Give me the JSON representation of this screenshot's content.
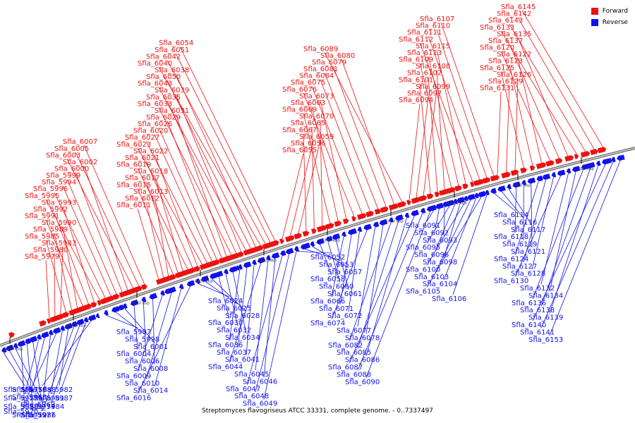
{
  "caption": "Streptomyces flavogriseus ATCC 33331, complete genome. - 0..7337497",
  "legend": {
    "forward_label": "Forward",
    "forward_color": "#ee1111",
    "reverse_label": "Reverse",
    "reverse_color": "#1111ee"
  },
  "ticks": [
    "6840 kbp",
    "6860 kbp",
    "6880 kbp",
    "6900 kbp",
    "6920 kbp",
    "6940 kbp",
    "6960 kbp",
    "6980 kbp",
    "7000 kbp",
    "7020 kbp"
  ],
  "forward_genes": [
    "Sfla_5979",
    "Sfla_5980",
    "Sfla_5983",
    "Sfla_5985",
    "Sfla_5989",
    "Sfla_5990",
    "Sfla_5991",
    "Sfla_5992",
    "Sfla_5993",
    "Sfla_5995",
    "Sfla_5996",
    "Sfla_5994",
    "Sfla_5999",
    "Sfla_6000",
    "Sfla_6002",
    "Sfla_6003",
    "Sfla_6005",
    "Sfla_6007",
    "Sfla_6011",
    "Sfla_6012",
    "Sfla_6013",
    "Sfla_6015",
    "Sfla_6017",
    "Sfla_6018",
    "Sfla_6019",
    "Sfla_6021",
    "Sfla_6022",
    "Sfla_6023",
    "Sfla_6027",
    "Sfla_6020",
    "Sfla_6026",
    "Sfla_6029",
    "Sfla_6031",
    "Sfla_6033",
    "Sfla_6035",
    "Sfla_6039",
    "Sfla_6043",
    "Sfla_6050",
    "Sfla_6038",
    "Sfla_6040",
    "Sfla_6042",
    "Sfla_6051",
    "Sfla_6054",
    "Sfla_6055",
    "Sfla_6056",
    "Sfla_6059",
    "Sfla_6067",
    "Sfla_6065",
    "Sfla_6070",
    "Sfla_6069",
    "Sfla_6063",
    "Sfla_6073",
    "Sfla_6076",
    "Sfla_6075",
    "Sfla_6084",
    "Sfla_6081",
    "Sfla_6079",
    "Sfla_6080",
    "Sfla_6089",
    "Sfla_6094",
    "Sfla_6097",
    "Sfla_6099",
    "Sfla_6101",
    "Sfla_6102",
    "Sfla_6108",
    "Sfla_6109",
    "Sfla_6113",
    "Sfla_6115",
    "Sfla_6112",
    "Sfla_6111",
    "Sfla_6110",
    "Sfla_6107",
    "Sfla_6131",
    "Sfla_6129",
    "Sfla_6126",
    "Sfla_6125",
    "Sfla_6123",
    "Sfla_6122",
    "Sfla_6120",
    "Sfla_6137",
    "Sfla_6135",
    "Sfla_6133",
    "Sfla_6143",
    "Sfla_6142",
    "Sfla_6145"
  ],
  "reverse_genes": [
    "Sfla_5967",
    "Sfla_5968",
    "Sfla_5969",
    "Sfla_5970",
    "Sfla_5972",
    "Sfla_5974",
    "Sfla_5975",
    "Sfla_5976",
    "Sfla_5977",
    "Sfla_5978",
    "Sfla_5981",
    "Sfla_5982",
    "Sfla_5986",
    "Sfla_5984",
    "Sfla_5987",
    "Sfla_5988",
    "Sfla_5997",
    "Sfla_5998",
    "Sfla_6001",
    "Sfla_6004",
    "Sfla_6006",
    "Sfla_6008",
    "Sfla_6009",
    "Sfla_6010",
    "Sfla_6014",
    "Sfla_6016",
    "Sfla_6024",
    "Sfla_6025",
    "Sfla_6028",
    "Sfla_6030",
    "Sfla_6032",
    "Sfla_6034",
    "Sfla_6036",
    "Sfla_6037",
    "Sfla_6041",
    "Sfla_6044",
    "Sfla_6045",
    "Sfla_6046",
    "Sfla_6047",
    "Sfla_6048",
    "Sfla_6049",
    "Sfla_6052",
    "Sfla_6053",
    "Sfla_6057",
    "Sfla_6058",
    "Sfla_6060",
    "Sfla_6061",
    "Sfla_6066",
    "Sfla_6071",
    "Sfla_6072",
    "Sfla_6074",
    "Sfla_6077",
    "Sfla_6078",
    "Sfla_6082",
    "Sfla_6085",
    "Sfla_6086",
    "Sfla_6087",
    "Sfla_6088",
    "Sfla_6090",
    "Sfla_6091",
    "Sfla_6092",
    "Sfla_6093",
    "Sfla_6095",
    "Sfla_6096",
    "Sfla_6098",
    "Sfla_6100",
    "Sfla_6103",
    "Sfla_6104",
    "Sfla_6105",
    "Sfla_6106",
    "Sfla_6114",
    "Sfla_6116",
    "Sfla_6117",
    "Sfla_6118",
    "Sfla_6119",
    "Sfla_6121",
    "Sfla_6124",
    "Sfla_6127",
    "Sfla_6128",
    "Sfla_6130",
    "Sfla_6132",
    "Sfla_6134",
    "Sfla_6136",
    "Sfla_6138",
    "Sfla_6139",
    "Sfla_6140",
    "Sfla_6141",
    "Sfla_6153"
  ]
}
